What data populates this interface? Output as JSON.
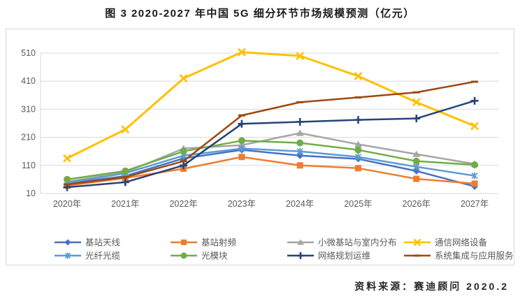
{
  "title": "图 3 2020-2027 年中国 5G 细分环节市场规模预测（亿元）",
  "source": "资料来源：赛迪顾问  2020.2",
  "colors": {
    "grid": "#d9d9d9",
    "axis_text": "#595959",
    "panel_border": "#d9d9d9",
    "legend_text": "#595959",
    "title_text": "#1a1a1a",
    "source_text": "#262626"
  },
  "chart_data": {
    "type": "line",
    "title": "图 3 2020-2027 年中国 5G 细分环节市场规模预测（亿元）",
    "categories": [
      "2020年",
      "2021年",
      "2022年",
      "2023年",
      "2024年",
      "2025年",
      "2026年",
      "2027年"
    ],
    "yticks": [
      10,
      110,
      210,
      310,
      410,
      510
    ],
    "ylim": [
      10,
      510
    ],
    "grid": true,
    "legend_position": "bottom",
    "series": [
      {
        "name": "基站天线",
        "color": "#4472C4",
        "marker": "diamond",
        "values": [
          45,
          72,
          135,
          165,
          145,
          133,
          90,
          35
        ]
      },
      {
        "name": "基站射频",
        "color": "#ED7D31",
        "marker": "square",
        "values": [
          38,
          65,
          98,
          140,
          110,
          100,
          62,
          45
        ]
      },
      {
        "name": "小微基站与室内分布",
        "color": "#A5A5A5",
        "marker": "triangle",
        "values": [
          52,
          85,
          170,
          182,
          225,
          185,
          150,
          115
        ]
      },
      {
        "name": "通信网络设备",
        "color": "#FFC000",
        "marker": "x",
        "values": [
          135,
          238,
          420,
          513,
          500,
          428,
          335,
          250
        ]
      },
      {
        "name": "光纤光缆",
        "color": "#5B9BD5",
        "marker": "asterisk",
        "values": [
          48,
          82,
          145,
          170,
          160,
          140,
          105,
          73
        ]
      },
      {
        "name": "光模块",
        "color": "#70AD47",
        "marker": "circle",
        "values": [
          60,
          90,
          160,
          198,
          190,
          165,
          125,
          112
        ]
      },
      {
        "name": "网络规划运维",
        "color": "#264478",
        "marker": "plus",
        "values": [
          32,
          50,
          110,
          258,
          265,
          272,
          277,
          340
        ]
      },
      {
        "name": "系统集成与应用服务",
        "color": "#9E480E",
        "marker": "dash",
        "values": [
          42,
          68,
          125,
          288,
          335,
          352,
          370,
          408
        ]
      }
    ]
  }
}
